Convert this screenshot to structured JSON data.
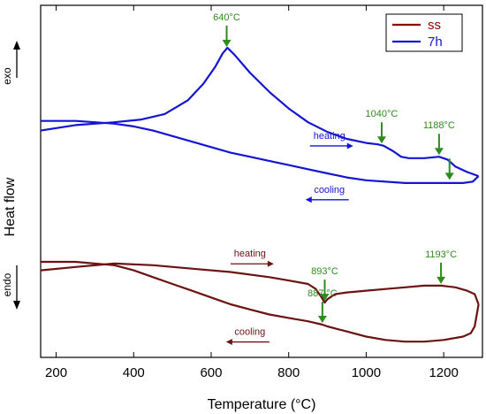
{
  "chart_data": {
    "type": "line",
    "title": "",
    "xlabel": "Temperature (°C)",
    "ylabel": "Heat flow",
    "exo_label": "exo",
    "endo_label": "endo",
    "xlim": [
      160,
      1300
    ],
    "x_ticks": [
      200,
      400,
      600,
      800,
      1000,
      1200
    ],
    "y_ticks_shown": false,
    "grid": false,
    "legend_position": "top-right",
    "legend": [
      {
        "name": "ss",
        "color": "#8B0000"
      },
      {
        "name": "7h",
        "color": "#1414d2"
      }
    ],
    "series": [
      {
        "name": "7h",
        "segment": "heating",
        "color": "#1414d2",
        "x": [
          160,
          250,
          350,
          420,
          480,
          540,
          580,
          610,
          630,
          642,
          660,
          700,
          750,
          800,
          850,
          900,
          950,
          1000,
          1030,
          1045,
          1070,
          1090,
          1110,
          1150,
          1188,
          1210,
          1230,
          1260,
          1280,
          1290
        ],
        "y": [
          0.4,
          0.44,
          0.46,
          0.48,
          0.52,
          0.62,
          0.74,
          0.86,
          0.96,
          1.0,
          0.95,
          0.82,
          0.68,
          0.56,
          0.46,
          0.39,
          0.34,
          0.31,
          0.3,
          0.29,
          0.25,
          0.21,
          0.2,
          0.2,
          0.21,
          0.19,
          0.14,
          0.1,
          0.08,
          0.07
        ]
      },
      {
        "name": "7h",
        "segment": "cooling",
        "color": "#1414d2",
        "x": [
          160,
          200,
          250,
          300,
          350,
          400,
          450,
          500,
          550,
          600,
          650,
          700,
          750,
          800,
          850,
          900,
          950,
          1000,
          1100,
          1200,
          1250,
          1275,
          1290
        ],
        "y": [
          0.47,
          0.47,
          0.47,
          0.46,
          0.45,
          0.43,
          0.4,
          0.36,
          0.32,
          0.28,
          0.24,
          0.21,
          0.18,
          0.15,
          0.12,
          0.09,
          0.06,
          0.04,
          0.02,
          0.02,
          0.02,
          0.03,
          0.07
        ]
      },
      {
        "name": "ss",
        "segment": "heating",
        "color": "#6b1212",
        "x": [
          160,
          250,
          350,
          450,
          550,
          650,
          750,
          800,
          850,
          870,
          885,
          893,
          900,
          920,
          950,
          1000,
          1050,
          1100,
          1150,
          1193,
          1230,
          1260,
          1280,
          1290
        ],
        "y": [
          -0.6,
          -0.58,
          -0.56,
          -0.57,
          -0.59,
          -0.61,
          -0.64,
          -0.66,
          -0.68,
          -0.71,
          -0.76,
          -0.79,
          -0.77,
          -0.74,
          -0.73,
          -0.72,
          -0.71,
          -0.7,
          -0.69,
          -0.69,
          -0.7,
          -0.72,
          -0.74,
          -0.8
        ]
      },
      {
        "name": "ss",
        "segment": "cooling",
        "color": "#6b1212",
        "x": [
          160,
          250,
          350,
          400,
          450,
          500,
          550,
          600,
          650,
          700,
          750,
          800,
          850,
          887,
          900,
          950,
          1000,
          1050,
          1100,
          1150,
          1200,
          1250,
          1270,
          1280,
          1290
        ],
        "y": [
          -0.55,
          -0.55,
          -0.57,
          -0.6,
          -0.64,
          -0.68,
          -0.72,
          -0.76,
          -0.8,
          -0.83,
          -0.86,
          -0.88,
          -0.9,
          -0.92,
          -0.93,
          -0.96,
          -0.99,
          -1.01,
          -1.02,
          -1.02,
          -1.01,
          -0.99,
          -0.97,
          -0.93,
          -0.8
        ]
      }
    ],
    "annotations": [
      {
        "text": "640°C",
        "x": 640,
        "series": "7h",
        "color": "#2e8b1e"
      },
      {
        "text": "1040°C",
        "x": 1040,
        "series": "7h",
        "color": "#2e8b1e"
      },
      {
        "text": "1188°C",
        "x": 1188,
        "series": "7h",
        "color": "#2e8b1e"
      },
      {
        "text": "",
        "x": 1215,
        "series": "7h",
        "color": "#2e8b1e"
      },
      {
        "text": "893°C",
        "x": 893,
        "series": "ss",
        "color": "#2e8b1e"
      },
      {
        "text": "887 °C",
        "x": 887,
        "series": "ss",
        "color": "#2e8b1e"
      },
      {
        "text": "1193°C",
        "x": 1193,
        "series": "ss",
        "color": "#2e8b1e"
      }
    ],
    "direction_labels": [
      {
        "text": "heating",
        "series": "7h",
        "direction": "right",
        "color": "#1414d2"
      },
      {
        "text": "cooling",
        "series": "7h",
        "direction": "left",
        "color": "#1414d2"
      },
      {
        "text": "heating",
        "series": "ss",
        "direction": "right",
        "color": "#6b1212"
      },
      {
        "text": "cooling",
        "series": "ss",
        "direction": "left",
        "color": "#6b1212"
      }
    ]
  }
}
